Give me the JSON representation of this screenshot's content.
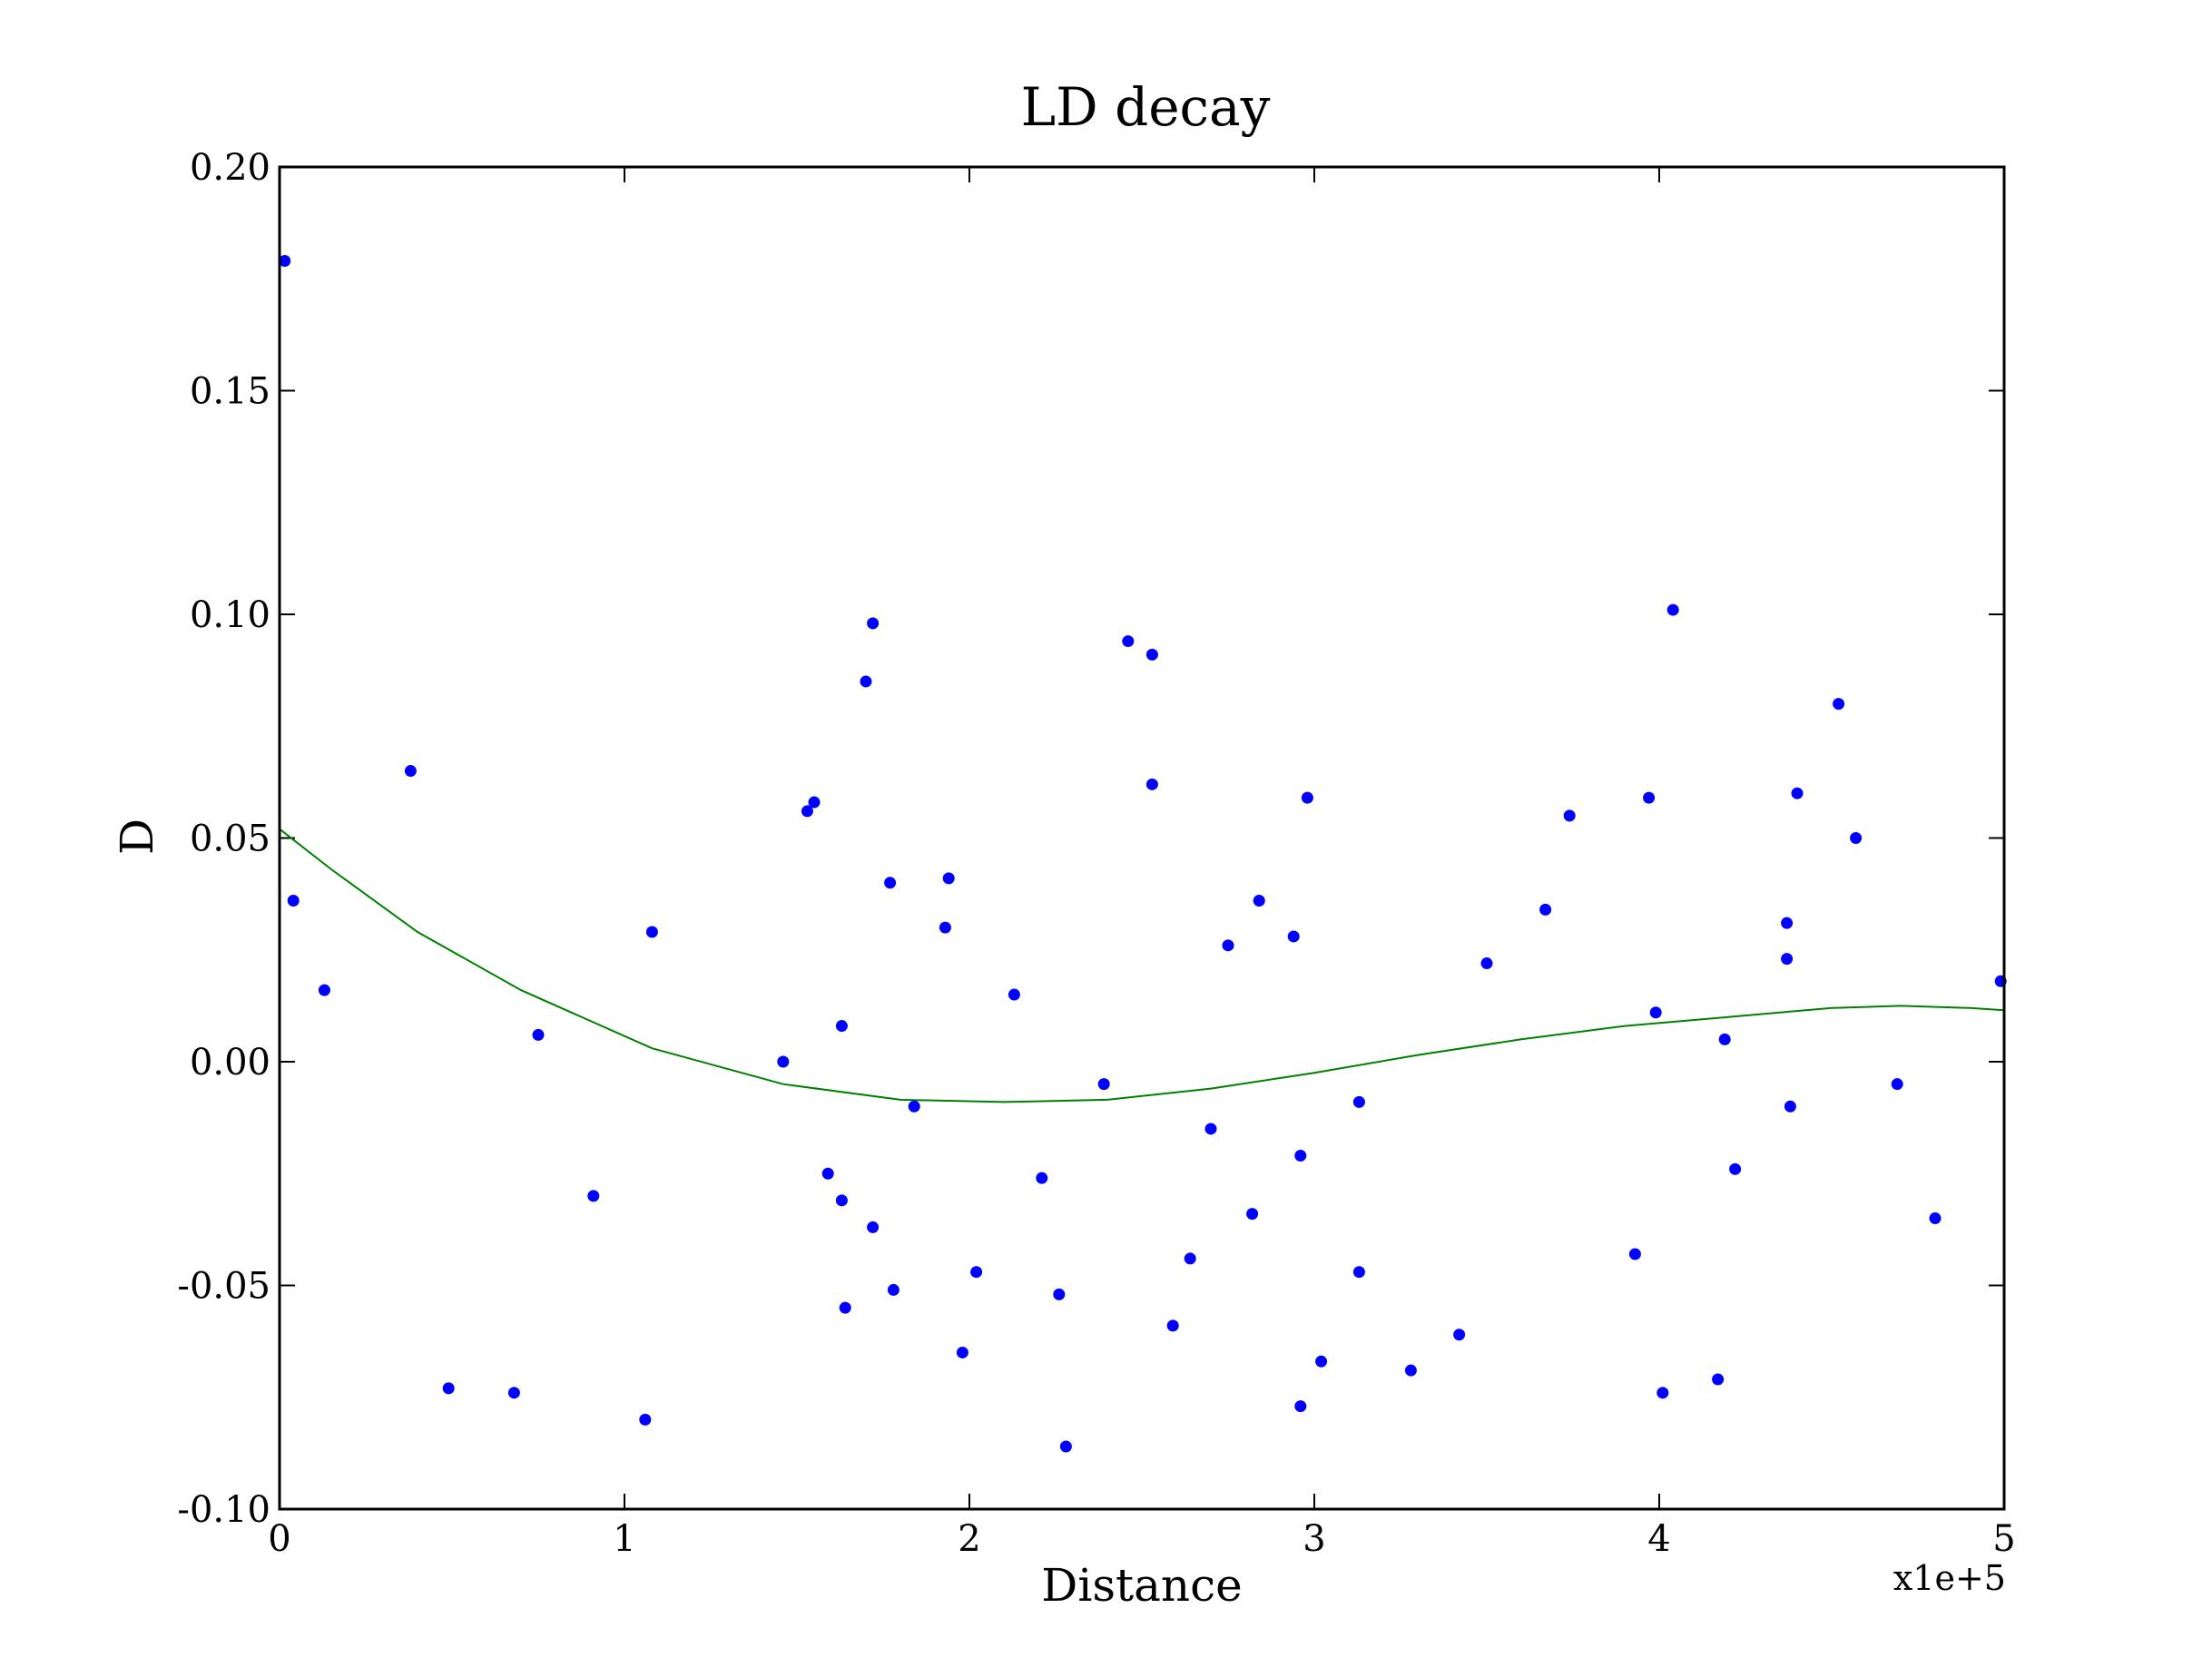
{
  "chart_data": {
    "type": "scatter",
    "title": "LD decay",
    "xlabel": "Distance",
    "ylabel": "D",
    "x_offset_label": "x1e+5",
    "xlim": [
      0,
      500000
    ],
    "ylim": [
      -0.1,
      0.2
    ],
    "x_ticks": [
      0,
      100000,
      200000,
      300000,
      400000,
      500000
    ],
    "x_tick_labels": [
      "0",
      "1",
      "2",
      "3",
      "4",
      "5"
    ],
    "y_ticks": [
      -0.1,
      -0.05,
      0.0,
      0.05,
      0.1,
      0.15,
      0.2
    ],
    "y_tick_labels": [
      "-0.10",
      "-0.05",
      "0.00",
      "0.05",
      "0.10",
      "0.15",
      "0.20"
    ],
    "grid": false,
    "point_color": "#0000ff",
    "line_color": "#008000",
    "points": [
      [
        1500,
        0.179
      ],
      [
        4000,
        0.036
      ],
      [
        13000,
        0.016
      ],
      [
        38000,
        0.065
      ],
      [
        49000,
        -0.073
      ],
      [
        68000,
        -0.074
      ],
      [
        75000,
        0.006
      ],
      [
        91000,
        -0.03
      ],
      [
        106000,
        -0.08
      ],
      [
        108000,
        0.029
      ],
      [
        146000,
        0.0
      ],
      [
        153000,
        0.056
      ],
      [
        155000,
        0.058
      ],
      [
        159000,
        -0.025
      ],
      [
        163000,
        0.008
      ],
      [
        163000,
        -0.031
      ],
      [
        164000,
        -0.055
      ],
      [
        170000,
        0.085
      ],
      [
        172000,
        0.098
      ],
      [
        172000,
        -0.037
      ],
      [
        177000,
        0.04
      ],
      [
        178000,
        -0.051
      ],
      [
        184000,
        -0.01
      ],
      [
        193000,
        0.03
      ],
      [
        194000,
        0.041
      ],
      [
        198000,
        -0.065
      ],
      [
        202000,
        -0.047
      ],
      [
        213000,
        0.015
      ],
      [
        221000,
        -0.026
      ],
      [
        226000,
        -0.052
      ],
      [
        228000,
        -0.086
      ],
      [
        239000,
        -0.005
      ],
      [
        246000,
        0.094
      ],
      [
        253000,
        0.091
      ],
      [
        253000,
        0.062
      ],
      [
        259000,
        -0.059
      ],
      [
        264000,
        -0.044
      ],
      [
        270000,
        -0.015
      ],
      [
        275000,
        0.026
      ],
      [
        282000,
        -0.034
      ],
      [
        284000,
        0.036
      ],
      [
        294000,
        0.028
      ],
      [
        296000,
        -0.021
      ],
      [
        296000,
        -0.077
      ],
      [
        298000,
        0.059
      ],
      [
        302000,
        -0.067
      ],
      [
        313000,
        -0.009
      ],
      [
        313000,
        -0.047
      ],
      [
        328000,
        -0.069
      ],
      [
        342000,
        -0.061
      ],
      [
        350000,
        0.022
      ],
      [
        367000,
        0.034
      ],
      [
        374000,
        0.055
      ],
      [
        393000,
        -0.043
      ],
      [
        397000,
        0.059
      ],
      [
        399000,
        0.011
      ],
      [
        401000,
        -0.074
      ],
      [
        404000,
        0.101
      ],
      [
        417000,
        -0.071
      ],
      [
        419000,
        0.005
      ],
      [
        422000,
        -0.024
      ],
      [
        437000,
        0.031
      ],
      [
        437000,
        0.023
      ],
      [
        438000,
        -0.01
      ],
      [
        440000,
        0.06
      ],
      [
        452000,
        0.08
      ],
      [
        457000,
        0.05
      ],
      [
        469000,
        -0.005
      ],
      [
        480000,
        -0.035
      ],
      [
        499000,
        0.018
      ]
    ],
    "fit_line": [
      [
        0,
        0.052
      ],
      [
        15000,
        0.043
      ],
      [
        40000,
        0.029
      ],
      [
        70000,
        0.016
      ],
      [
        108000,
        0.003
      ],
      [
        146000,
        -0.005
      ],
      [
        180000,
        -0.0085
      ],
      [
        210000,
        -0.009
      ],
      [
        240000,
        -0.0085
      ],
      [
        270000,
        -0.006
      ],
      [
        300000,
        -0.0025
      ],
      [
        330000,
        0.0015
      ],
      [
        360000,
        0.005
      ],
      [
        390000,
        0.008
      ],
      [
        420000,
        0.01
      ],
      [
        450000,
        0.012
      ],
      [
        470000,
        0.0125
      ],
      [
        490000,
        0.012
      ],
      [
        500000,
        0.0115
      ]
    ]
  }
}
